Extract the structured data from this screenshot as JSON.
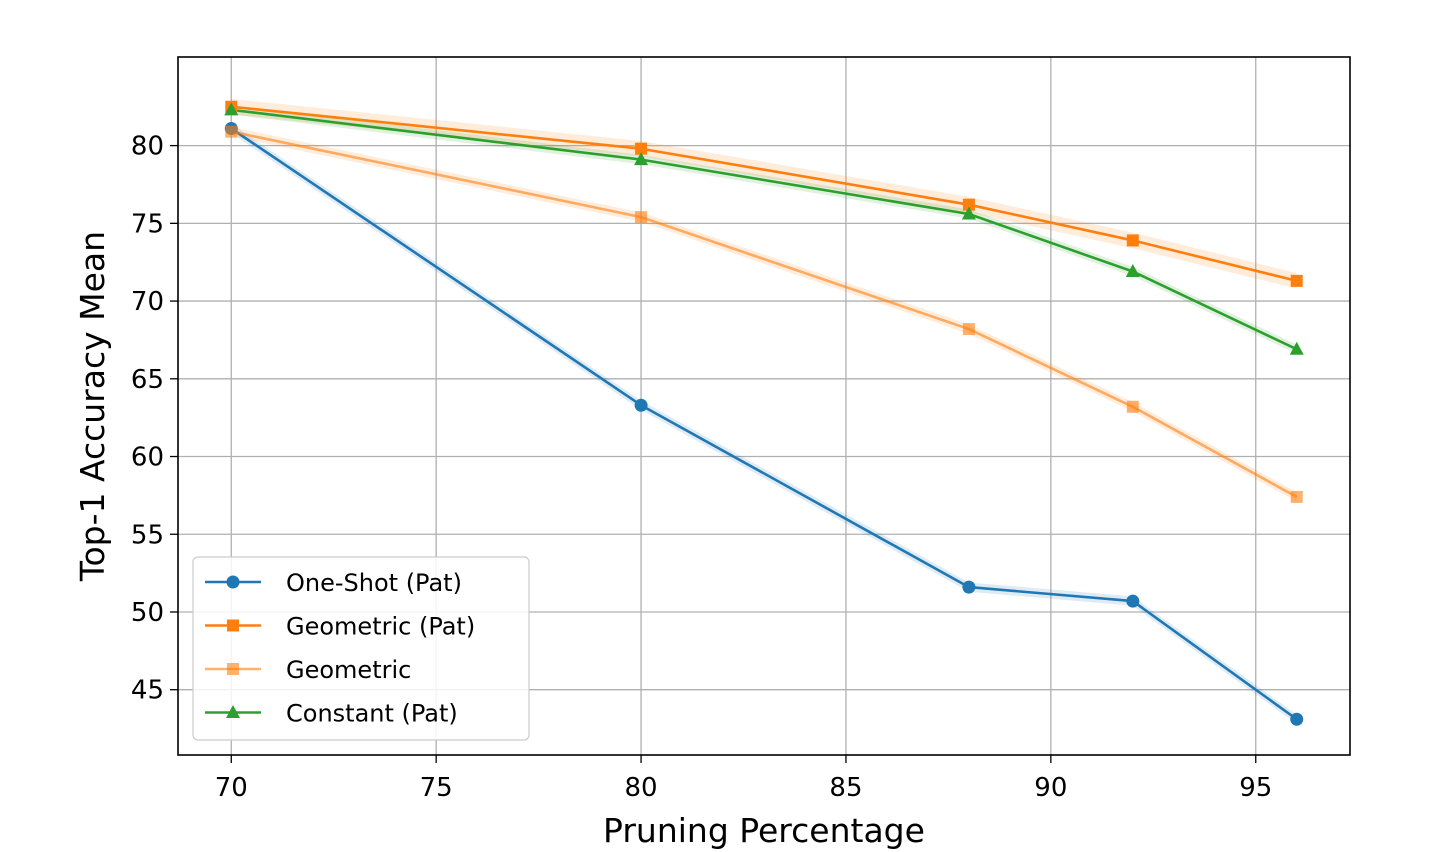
{
  "chart_data": {
    "type": "line",
    "title": "",
    "xlabel": "Pruning Percentage",
    "ylabel": "Top-1 Accuracy Mean",
    "xlim": [
      68.7,
      97.3
    ],
    "ylim": [
      40.8,
      85.7
    ],
    "xticks": [
      70,
      75,
      80,
      85,
      90,
      95
    ],
    "yticks": [
      45,
      50,
      55,
      60,
      65,
      70,
      75,
      80
    ],
    "grid": true,
    "legend_position": "bottom-left",
    "x": [
      70,
      80,
      88,
      92,
      96
    ],
    "series": [
      {
        "name": "One-Shot (Pat)",
        "color": "#1f77b4",
        "marker": "circle",
        "opacity": 1.0,
        "values": [
          81.1,
          63.3,
          51.6,
          50.7,
          43.1
        ],
        "band": 0.3
      },
      {
        "name": "Geometric (Pat)",
        "color": "#ff7f0e",
        "marker": "square",
        "opacity": 1.0,
        "values": [
          82.5,
          79.8,
          76.2,
          73.9,
          71.3
        ],
        "band": 0.5
      },
      {
        "name": "Geometric",
        "color": "#ff7f0e",
        "marker": "square",
        "opacity": 0.6,
        "values": [
          80.9,
          75.4,
          68.2,
          63.2,
          57.4
        ],
        "band": 0.3
      },
      {
        "name": "Constant (Pat)",
        "color": "#2ca02c",
        "marker": "triangle",
        "opacity": 1.0,
        "values": [
          82.3,
          79.1,
          75.6,
          71.9,
          66.9
        ],
        "band": 0.3
      }
    ]
  }
}
